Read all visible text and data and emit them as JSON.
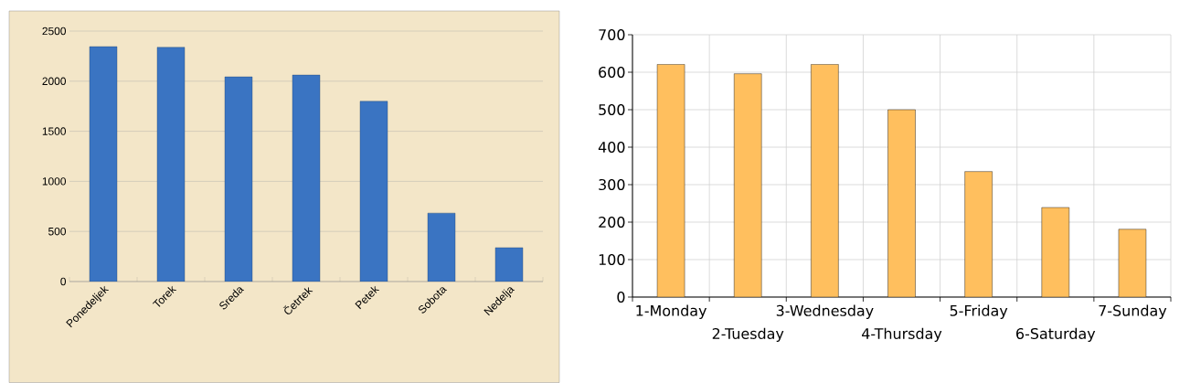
{
  "chart_data": [
    {
      "type": "bar",
      "categories": [
        "Ponedeljek",
        "Torek",
        "Sreda",
        "Četrtek",
        "Petek",
        "Sobota",
        "Nedelja"
      ],
      "values": [
        2345,
        2338,
        2043,
        2061,
        1799,
        683,
        338
      ],
      "color": "#3a74c2",
      "ylim": [
        0,
        2500
      ],
      "yticks": [
        0,
        500,
        1000,
        1500,
        2000,
        2500
      ],
      "grid": "y"
    },
    {
      "type": "bar",
      "categories": [
        "1-Monday",
        "2-Tuesday",
        "3-Wednesday",
        "4-Thursday",
        "5-Friday",
        "6-Saturday",
        "7-Sunday"
      ],
      "values": [
        621,
        596,
        621,
        500,
        335,
        239,
        181
      ],
      "color": "#ffbf5e",
      "ylim": [
        0,
        700
      ],
      "yticks": [
        0,
        100,
        200,
        300,
        400,
        500,
        600,
        700
      ],
      "grid": true
    }
  ]
}
